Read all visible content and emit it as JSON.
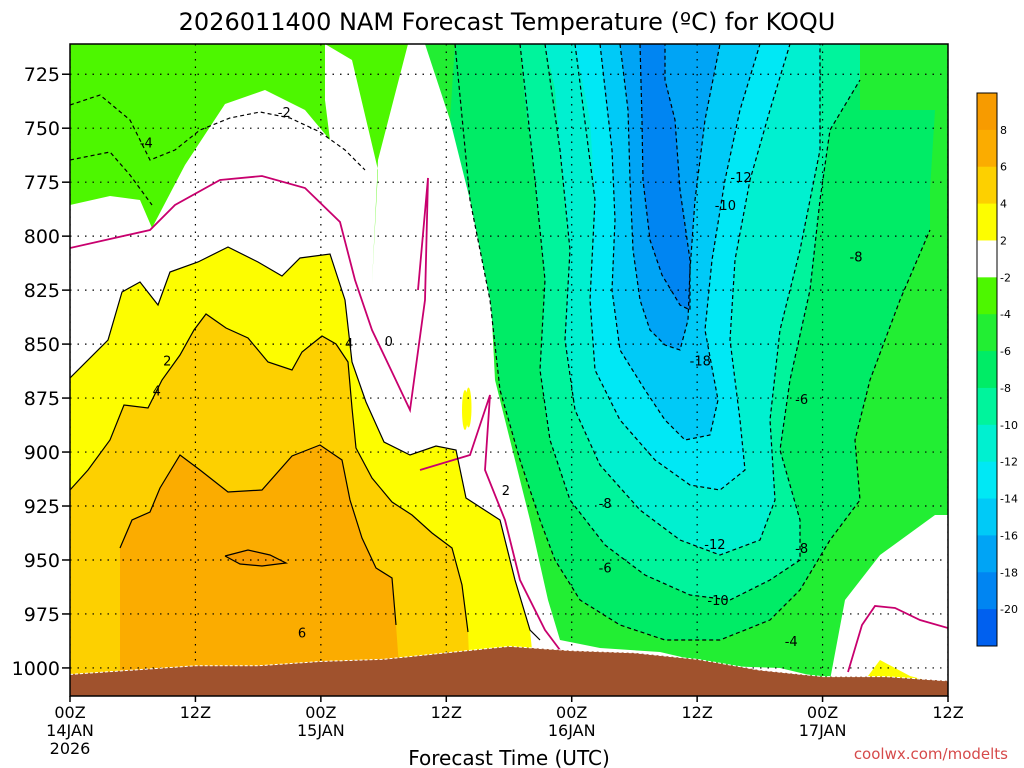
{
  "chart_data": {
    "type": "heatmap",
    "title": "2026011400 NAM Forecast Temperature (ºC) for KOQU",
    "xlabel": "Forecast Time (UTC)",
    "ylabel": "",
    "x_ticks": [
      {
        "hour": 0,
        "l1": "00Z",
        "l2": "14JAN",
        "l3": "2026"
      },
      {
        "hour": 12,
        "l1": "12Z",
        "l2": "",
        "l3": ""
      },
      {
        "hour": 24,
        "l1": "00Z",
        "l2": "15JAN",
        "l3": ""
      },
      {
        "hour": 36,
        "l1": "12Z",
        "l2": "",
        "l3": ""
      },
      {
        "hour": 48,
        "l1": "00Z",
        "l2": "16JAN",
        "l3": ""
      },
      {
        "hour": 60,
        "l1": "12Z",
        "l2": "",
        "l3": ""
      },
      {
        "hour": 72,
        "l1": "00Z",
        "l2": "17JAN",
        "l3": ""
      },
      {
        "hour": 84,
        "l1": "12Z",
        "l2": "",
        "l3": ""
      }
    ],
    "xlim": [
      0,
      84
    ],
    "y_ticks": [
      "725",
      "750",
      "775",
      "800",
      "825",
      "850",
      "875",
      "900",
      "925",
      "950",
      "975",
      "1000"
    ],
    "y_values": [
      725,
      750,
      775,
      800,
      825,
      850,
      875,
      900,
      925,
      950,
      975,
      1000
    ],
    "ylim": [
      711,
      1013
    ],
    "colorbar": {
      "labels": [
        "8",
        "6",
        "4",
        "2",
        "-2",
        "-4",
        "-6",
        "-8",
        "-10",
        "-12",
        "-14",
        "-16",
        "-18",
        "-20"
      ],
      "bins": [
        {
          "lo": 8,
          "hi": 10,
          "color": "#f79b00"
        },
        {
          "lo": 6,
          "hi": 8,
          "color": "#fbac00"
        },
        {
          "lo": 4,
          "hi": 6,
          "color": "#fdd000"
        },
        {
          "lo": 2,
          "hi": 4,
          "color": "#fdfd00"
        },
        {
          "lo": -2,
          "hi": 2,
          "color": "#ffffff"
        },
        {
          "lo": -4,
          "hi": -2,
          "color": "#4df700"
        },
        {
          "lo": -6,
          "hi": -4,
          "color": "#22ee33"
        },
        {
          "lo": -8,
          "hi": -6,
          "color": "#00ec66"
        },
        {
          "lo": -10,
          "hi": -8,
          "color": "#00f49c"
        },
        {
          "lo": -12,
          "hi": -10,
          "color": "#00f0d0"
        },
        {
          "lo": -14,
          "hi": -12,
          "color": "#00e8f5"
        },
        {
          "lo": -16,
          "hi": -14,
          "color": "#00caf7"
        },
        {
          "lo": -18,
          "hi": -16,
          "color": "#00a4f5"
        },
        {
          "lo": -20,
          "hi": -18,
          "color": "#0085f2"
        },
        {
          "lo": -22,
          "hi": -20,
          "color": "#0060ef"
        }
      ]
    },
    "ground_color": "#a0522d",
    "terrain_top_hPa": [
      [
        0,
        1003
      ],
      [
        6,
        1001
      ],
      [
        12,
        999
      ],
      [
        18,
        999
      ],
      [
        24,
        997
      ],
      [
        30,
        996
      ],
      [
        36,
        993
      ],
      [
        42,
        990
      ],
      [
        48,
        992
      ],
      [
        54,
        993
      ],
      [
        60,
        996
      ],
      [
        66,
        1001
      ],
      [
        72,
        1004
      ],
      [
        78,
        1004
      ],
      [
        84,
        1006
      ]
    ],
    "contour_labels": [
      {
        "text": "-2",
        "x": 20.5,
        "p": 743
      },
      {
        "text": "-4",
        "x": 7.3,
        "p": 757
      },
      {
        "text": "2",
        "x": 9.3,
        "p": 858
      },
      {
        "text": "4",
        "x": 8.3,
        "p": 872
      },
      {
        "text": "4",
        "x": 26.7,
        "p": 850
      },
      {
        "text": "0",
        "x": 30.5,
        "p": 849
      },
      {
        "text": "2",
        "x": 41.7,
        "p": 918
      },
      {
        "text": "6",
        "x": 22.2,
        "p": 984
      },
      {
        "text": "-8",
        "x": 51.2,
        "p": 924
      },
      {
        "text": "-6",
        "x": 51.2,
        "p": 954
      },
      {
        "text": "-12",
        "x": 64.2,
        "p": 773
      },
      {
        "text": "-10",
        "x": 62.7,
        "p": 786
      },
      {
        "text": "-18",
        "x": 60.3,
        "p": 858
      },
      {
        "text": "-6",
        "x": 70.0,
        "p": 876
      },
      {
        "text": "-8",
        "x": 75.2,
        "p": 810
      },
      {
        "text": "-12",
        "x": 61.7,
        "p": 943
      },
      {
        "text": "-8",
        "x": 70.0,
        "p": 945
      },
      {
        "text": "-10",
        "x": 62.0,
        "p": 969
      },
      {
        "text": "-4",
        "x": 69.0,
        "p": 988
      }
    ]
  },
  "watermark": "coolwx.com/modelts",
  "colors": {
    "background": "#ffffff",
    "frame": "#000000",
    "watermark": "#d64a4a",
    "zero_contour": "#c8006e"
  }
}
